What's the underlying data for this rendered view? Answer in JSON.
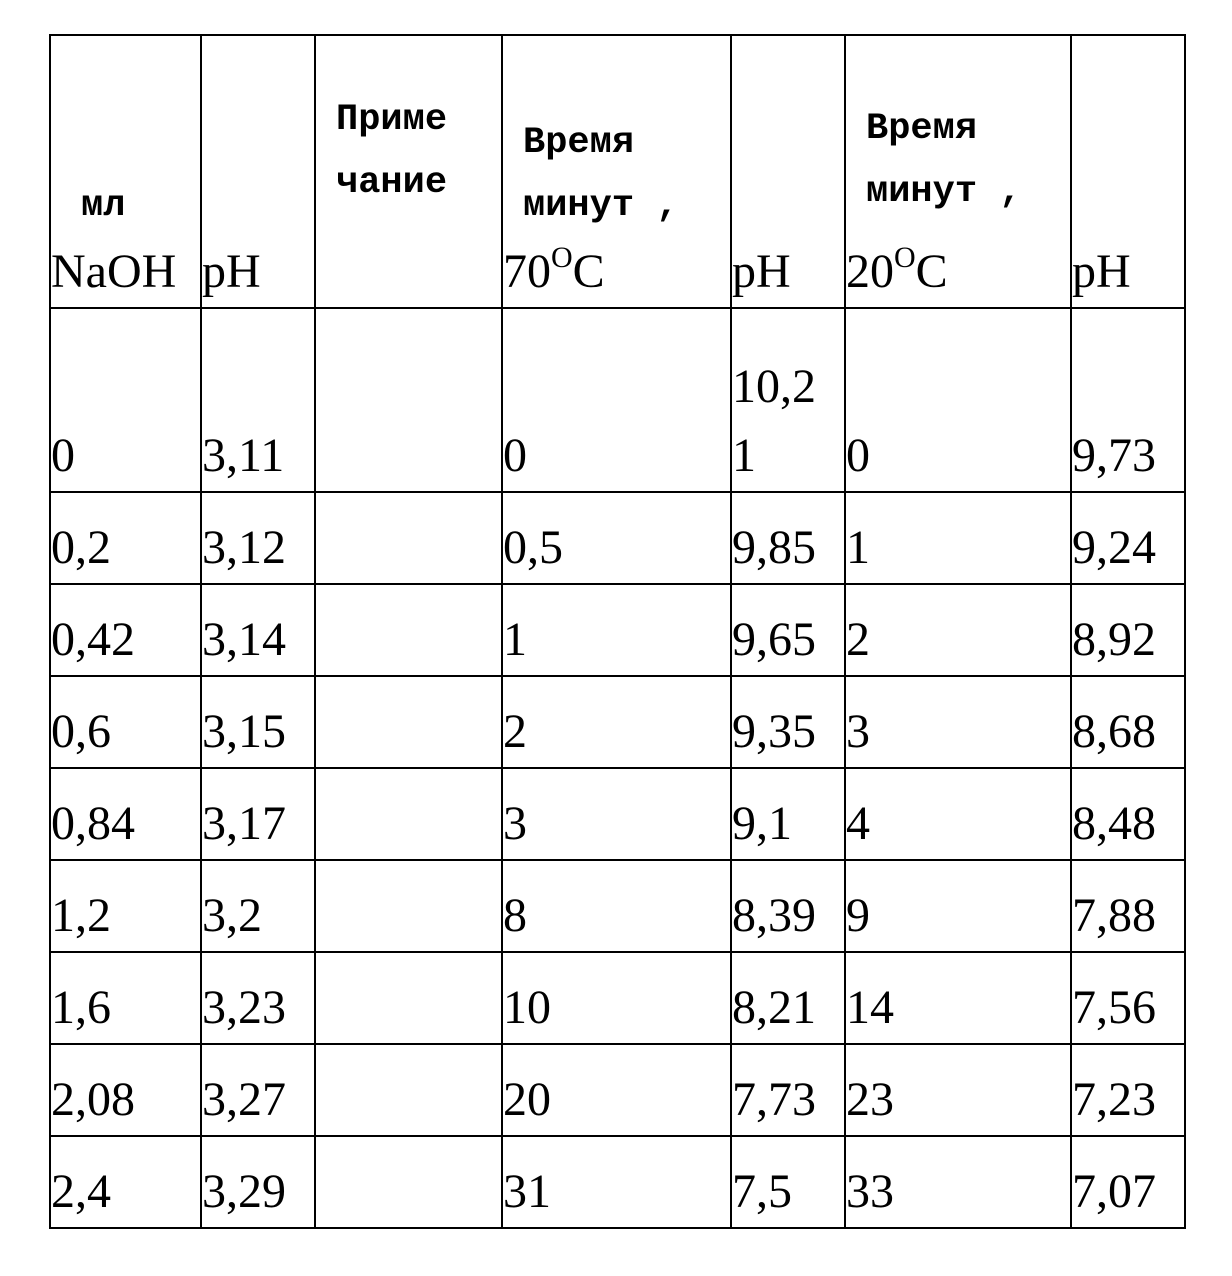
{
  "table": {
    "header": {
      "naoh_line1": "мл",
      "naoh_line2": "NaOH",
      "ph1": "pH",
      "note_line1": "Приме",
      "note_line2": "чание",
      "time70_line1": "Время",
      "time70_line2": "минут ,",
      "time70_temp": "70",
      "time70_unit": "O",
      "time70_c": "C",
      "ph2": "pH",
      "time20_line1": "Время",
      "time20_line2": "минут ,",
      "time20_temp": "20",
      "time20_unit": "O",
      "time20_c": "C",
      "ph3": "pH"
    },
    "rows": [
      {
        "naoh": "0",
        "ph1": "3,11",
        "note": "",
        "time70": "0",
        "ph2_a": "10,2",
        "ph2_b": "1",
        "time20": "0",
        "ph3": "9,73"
      },
      {
        "naoh": "0,2",
        "ph1": "3,12",
        "note": "",
        "time70": "0,5",
        "ph2": "9,85",
        "time20": "1",
        "ph3": "9,24"
      },
      {
        "naoh": "0,42",
        "ph1": "3,14",
        "note": "",
        "time70": "1",
        "ph2": "9,65",
        "time20": "2",
        "ph3": "8,92"
      },
      {
        "naoh": "0,6",
        "ph1": "3,15",
        "note": "",
        "time70": "2",
        "ph2": "9,35",
        "time20": "3",
        "ph3": "8,68"
      },
      {
        "naoh": "0,84",
        "ph1": "3,17",
        "note": "",
        "time70": "3",
        "ph2": "9,1",
        "time20": "4",
        "ph3": "8,48"
      },
      {
        "naoh": "1,2",
        "ph1": "3,2",
        "note": "",
        "time70": "8",
        "ph2": "8,39",
        "time20": "9",
        "ph3": "7,88"
      },
      {
        "naoh": "1,6",
        "ph1": "3,23",
        "note": "",
        "time70": "10",
        "ph2": "8,21",
        "time20": "14",
        "ph3": "7,56"
      },
      {
        "naoh": "2,08",
        "ph1": "3,27",
        "note": "",
        "time70": "20",
        "ph2": "7,73",
        "time20": "23",
        "ph3": "7,23"
      },
      {
        "naoh": "2,4",
        "ph1": "3,29",
        "note": "",
        "time70": "31",
        "ph2": "7,5",
        "time20": "33",
        "ph3": "7,07"
      }
    ]
  }
}
